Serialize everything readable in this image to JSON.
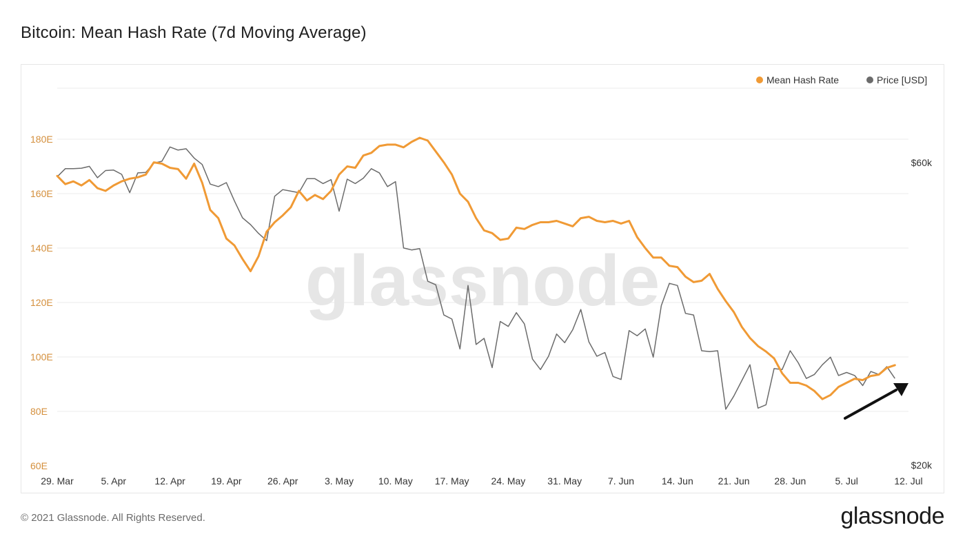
{
  "title": "Bitcoin: Mean Hash Rate (7d Moving Average)",
  "footer": "© 2021 Glassnode. All Rights Reserved.",
  "brand": "glassnode",
  "watermark": "glassnode",
  "colors": {
    "hash_rate": "#f09a35",
    "price": "#6b6b6b",
    "left_axis_text": "#d48f3c",
    "grid": "#ebebeb",
    "arrow": "#111111",
    "watermark": "#e6e6e6"
  },
  "chart_data": {
    "type": "line",
    "title": "Bitcoin: Mean Hash Rate (7d Moving Average)",
    "legend": {
      "placement": "top-right",
      "entries": [
        "Mean Hash Rate",
        "Price [USD]"
      ]
    },
    "grid": true,
    "x_ticks": [
      "29. Mar",
      "5. Apr",
      "12. Apr",
      "19. Apr",
      "26. Apr",
      "3. May",
      "10. May",
      "17. May",
      "24. May",
      "31. May",
      "7. Jun",
      "14. Jun",
      "21. Jun",
      "28. Jun",
      "5. Jul",
      "12. Jul"
    ],
    "x_start": "2021-03-29",
    "y_left": {
      "ticks": [
        "60E",
        "80E",
        "100E",
        "120E",
        "140E",
        "160E",
        "180E"
      ],
      "min": 60,
      "max": 180
    },
    "y_right": {
      "ticks": [
        "$20k",
        "$60k"
      ],
      "min": 20000,
      "max": 60000,
      "scale": "log"
    },
    "series": [
      {
        "name": "Mean Hash Rate",
        "axis": "left",
        "unit": "EH/s",
        "values": [
          [
            0,
            166.5
          ],
          [
            1,
            163.5
          ],
          [
            2,
            164.5
          ],
          [
            3,
            163
          ],
          [
            4,
            165
          ],
          [
            5,
            162
          ],
          [
            6,
            161
          ],
          [
            7,
            163
          ],
          [
            8,
            164.5
          ],
          [
            9,
            165.5
          ],
          [
            10,
            166
          ],
          [
            11,
            167
          ],
          [
            12,
            171.5
          ],
          [
            13,
            171
          ],
          [
            14,
            169.5
          ],
          [
            15,
            169
          ],
          [
            16,
            165.5
          ],
          [
            17,
            171
          ],
          [
            18,
            164
          ],
          [
            19,
            154
          ],
          [
            20,
            151
          ],
          [
            21,
            143.5
          ],
          [
            22,
            141
          ],
          [
            23,
            136
          ],
          [
            24,
            131.5
          ],
          [
            25,
            137
          ],
          [
            26,
            146
          ],
          [
            27,
            149.5
          ],
          [
            28,
            152
          ],
          [
            29,
            155
          ],
          [
            30,
            161
          ],
          [
            31,
            157.5
          ],
          [
            32,
            159.5
          ],
          [
            33,
            158
          ],
          [
            34,
            161
          ],
          [
            35,
            167
          ],
          [
            36,
            170
          ],
          [
            37,
            169.5
          ],
          [
            38,
            174
          ],
          [
            39,
            175
          ],
          [
            40,
            177.5
          ],
          [
            41,
            178
          ],
          [
            42,
            178
          ],
          [
            43,
            177
          ],
          [
            44,
            179
          ],
          [
            45,
            180.5
          ],
          [
            46,
            179.5
          ],
          [
            47,
            175.5
          ],
          [
            48,
            171.5
          ],
          [
            49,
            167
          ],
          [
            50,
            160
          ],
          [
            51,
            157
          ],
          [
            52,
            151
          ],
          [
            53,
            146.5
          ],
          [
            54,
            145.5
          ],
          [
            55,
            143
          ],
          [
            56,
            143.5
          ],
          [
            57,
            147.5
          ],
          [
            58,
            147
          ],
          [
            59,
            148.5
          ],
          [
            60,
            149.5
          ],
          [
            61,
            149.5
          ],
          [
            62,
            150
          ],
          [
            63,
            149
          ],
          [
            64,
            148
          ],
          [
            65,
            151
          ],
          [
            66,
            151.5
          ],
          [
            67,
            150
          ],
          [
            68,
            149.5
          ],
          [
            69,
            150
          ],
          [
            70,
            149
          ],
          [
            71,
            150
          ],
          [
            72,
            144
          ],
          [
            73,
            140
          ],
          [
            74,
            136.5
          ],
          [
            75,
            136.5
          ],
          [
            76,
            133.5
          ],
          [
            77,
            133
          ],
          [
            78,
            129.5
          ],
          [
            79,
            127.5
          ],
          [
            80,
            128
          ],
          [
            81,
            130.5
          ],
          [
            82,
            125
          ],
          [
            83,
            120.5
          ],
          [
            84,
            116.5
          ],
          [
            85,
            111
          ],
          [
            86,
            107
          ],
          [
            87,
            104
          ],
          [
            88,
            102
          ],
          [
            89,
            99.5
          ],
          [
            90,
            94
          ],
          [
            91,
            90.5
          ],
          [
            92,
            90.5
          ],
          [
            93,
            89.5
          ],
          [
            94,
            87.5
          ],
          [
            95,
            84.5
          ],
          [
            96,
            86
          ],
          [
            97,
            89
          ],
          [
            98,
            90.5
          ],
          [
            99,
            92
          ],
          [
            100,
            91.5
          ],
          [
            101,
            93
          ],
          [
            102,
            93.5
          ],
          [
            103,
            96
          ],
          [
            104,
            97
          ]
        ]
      },
      {
        "name": "Price [USD]",
        "axis": "right",
        "unit": "USD",
        "values": [
          [
            0,
            57000
          ],
          [
            1,
            58700
          ],
          [
            2,
            58700
          ],
          [
            3,
            58800
          ],
          [
            4,
            59200
          ],
          [
            5,
            56800
          ],
          [
            6,
            58300
          ],
          [
            7,
            58400
          ],
          [
            8,
            57500
          ],
          [
            9,
            53800
          ],
          [
            10,
            57800
          ],
          [
            11,
            57900
          ],
          [
            12,
            59900
          ],
          [
            13,
            60300
          ],
          [
            14,
            63500
          ],
          [
            15,
            62800
          ],
          [
            16,
            63100
          ],
          [
            17,
            61000
          ],
          [
            18,
            59600
          ],
          [
            19,
            55500
          ],
          [
            20,
            55000
          ],
          [
            21,
            55800
          ],
          [
            22,
            52200
          ],
          [
            23,
            49100
          ],
          [
            24,
            47900
          ],
          [
            25,
            46400
          ],
          [
            26,
            45200
          ],
          [
            27,
            53100
          ],
          [
            28,
            54400
          ],
          [
            29,
            54100
          ],
          [
            30,
            53800
          ],
          [
            31,
            56600
          ],
          [
            32,
            56600
          ],
          [
            33,
            55600
          ],
          [
            34,
            56400
          ],
          [
            35,
            50300
          ],
          [
            36,
            56500
          ],
          [
            37,
            55600
          ],
          [
            38,
            56700
          ],
          [
            39,
            58700
          ],
          [
            40,
            57800
          ],
          [
            41,
            55000
          ],
          [
            42,
            56000
          ],
          [
            43,
            44000
          ],
          [
            44,
            43700
          ],
          [
            45,
            43900
          ],
          [
            46,
            39000
          ],
          [
            47,
            38500
          ],
          [
            48,
            34500
          ],
          [
            49,
            34000
          ],
          [
            50,
            30500
          ],
          [
            51,
            38400
          ],
          [
            52,
            31000
          ],
          [
            53,
            31700
          ],
          [
            54,
            28500
          ],
          [
            55,
            33700
          ],
          [
            56,
            33100
          ],
          [
            57,
            34800
          ],
          [
            58,
            33400
          ],
          [
            59,
            29400
          ],
          [
            60,
            28300
          ],
          [
            61,
            29700
          ],
          [
            62,
            32200
          ],
          [
            63,
            31200
          ],
          [
            64,
            32700
          ],
          [
            65,
            35200
          ],
          [
            66,
            31300
          ],
          [
            67,
            29700
          ],
          [
            68,
            30100
          ],
          [
            69,
            27600
          ],
          [
            70,
            27300
          ],
          [
            71,
            32600
          ],
          [
            72,
            32000
          ],
          [
            73,
            32800
          ],
          [
            74,
            29600
          ],
          [
            75,
            35700
          ],
          [
            76,
            38700
          ],
          [
            77,
            38400
          ],
          [
            78,
            34700
          ],
          [
            79,
            34500
          ],
          [
            80,
            30300
          ],
          [
            81,
            30200
          ],
          [
            82,
            30300
          ],
          [
            83,
            24500
          ],
          [
            84,
            25700
          ],
          [
            85,
            27200
          ],
          [
            86,
            28800
          ],
          [
            87,
            24600
          ],
          [
            88,
            24900
          ],
          [
            89,
            28400
          ],
          [
            90,
            28300
          ],
          [
            91,
            30300
          ],
          [
            92,
            29000
          ],
          [
            93,
            27400
          ],
          [
            94,
            27800
          ],
          [
            95,
            28800
          ],
          [
            96,
            29600
          ],
          [
            97,
            27700
          ],
          [
            98,
            28000
          ],
          [
            99,
            27700
          ],
          [
            100,
            26700
          ],
          [
            101,
            28100
          ],
          [
            102,
            27800
          ],
          [
            103,
            28600
          ],
          [
            104,
            27400
          ]
        ]
      }
    ]
  }
}
